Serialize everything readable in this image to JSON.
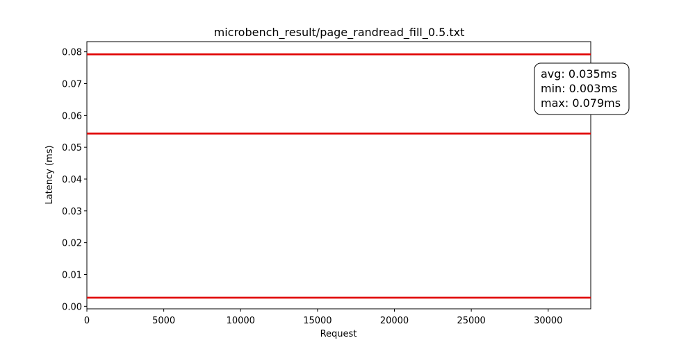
{
  "chart_data": {
    "type": "line",
    "title": "microbench_result/page_randread_fill_0.5.txt",
    "xlabel": "Request",
    "ylabel": "Latency (ms)",
    "xlim": [
      0,
      32768
    ],
    "ylim": [
      -0.0008,
      0.0832
    ],
    "x_ticks": [
      0,
      5000,
      10000,
      15000,
      20000,
      25000,
      30000
    ],
    "y_ticks": [
      0.0,
      0.01,
      0.02,
      0.03,
      0.04,
      0.05,
      0.06,
      0.07,
      0.08
    ],
    "x_tick_labels": [
      "0",
      "5000",
      "10000",
      "15000",
      "20000",
      "25000",
      "30000"
    ],
    "y_tick_labels": [
      "0.00",
      "0.01",
      "0.02",
      "0.03",
      "0.04",
      "0.05",
      "0.06",
      "0.07",
      "0.08"
    ],
    "grid": false,
    "series": [
      {
        "color": "#e00000",
        "bands": [
          {
            "y": 0.0027,
            "x_start": 0,
            "x_end": 32768
          },
          {
            "y": 0.0543,
            "x_start": 0,
            "x_end": 32768
          },
          {
            "y": 0.0792,
            "x_start": 0,
            "x_end": 32768
          }
        ]
      }
    ],
    "annotation": {
      "lines": [
        "avg: 0.035ms",
        "min: 0.003ms",
        "max: 0.079ms"
      ],
      "placement": "top-right"
    }
  }
}
